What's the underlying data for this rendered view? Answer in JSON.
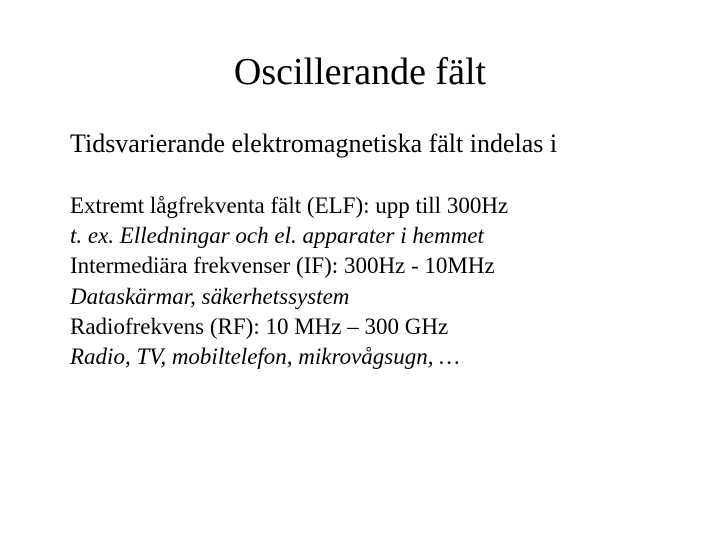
{
  "slide": {
    "title": "Oscillerande fält",
    "subtitle": "Tidsvarierande elektromagnetiska fält indelas i",
    "lines": {
      "l0": "Extremt lågfrekventa fält (ELF): upp till 300Hz",
      "l1": "t. ex. Elledningar och el. apparater i hemmet",
      "l2": "Intermediära frekvenser (IF): 300Hz - 10MHz",
      "l3": "Dataskärmar, säkerhetssystem",
      "l4": "Radiofrekvens (RF): 10 MHz – 300 GHz",
      "l5": "Radio, TV, mobiltelefon, mikrovågsugn, …"
    },
    "styles": {
      "title_fontsize": 38,
      "subtitle_fontsize": 26,
      "body_fontsize": 23,
      "text_color": "#000000",
      "background_color": "#ffffff",
      "font_family": "Times New Roman"
    }
  }
}
